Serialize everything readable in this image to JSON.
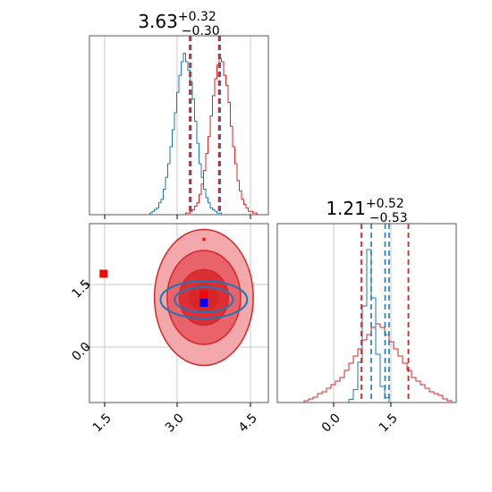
{
  "chart_data": [
    {
      "panel": "marginal-x",
      "type": "histogram",
      "title": {
        "value": "3.63",
        "plus": "+0.32",
        "minus": "−0.30"
      },
      "xlim": [
        1.2,
        5.0
      ],
      "grid": true,
      "series": [
        {
          "color": "#1f77b4",
          "values": [
            0,
            0,
            0,
            0,
            0,
            0,
            0,
            0,
            0,
            0,
            0,
            0,
            0,
            0,
            0,
            0,
            0,
            0,
            0,
            0,
            0,
            0,
            0,
            0,
            0,
            0,
            0,
            0.01,
            0.02,
            0.03,
            0.04,
            0.07,
            0.09,
            0.15,
            0.22,
            0.3,
            0.4,
            0.5,
            0.6,
            0.72,
            0.82,
            0.9,
            0.95,
            0.9,
            0.85,
            0.78,
            0.68,
            0.55,
            0.42,
            0.3,
            0.22,
            0.15,
            0.1,
            0.07,
            0.04,
            0.03,
            0.02,
            0.01,
            0.01,
            0,
            0,
            0,
            0,
            0,
            0,
            0,
            0,
            0,
            0,
            0,
            0,
            0,
            0,
            0,
            0,
            0,
            0,
            0,
            0,
            0
          ]
        },
        {
          "color": "#d62728",
          "values": [
            0,
            0,
            0,
            0,
            0,
            0,
            0,
            0,
            0,
            0,
            0,
            0,
            0,
            0,
            0,
            0,
            0,
            0,
            0,
            0,
            0,
            0,
            0,
            0,
            0,
            0,
            0,
            0,
            0,
            0,
            0,
            0,
            0,
            0,
            0,
            0,
            0,
            0,
            0,
            0,
            0,
            0,
            0,
            0.01,
            0.01,
            0.02,
            0.03,
            0.05,
            0.07,
            0.12,
            0.18,
            0.26,
            0.36,
            0.46,
            0.58,
            0.7,
            0.8,
            0.88,
            0.92,
            0.9,
            0.82,
            0.76,
            0.66,
            0.52,
            0.4,
            0.3,
            0.2,
            0.14,
            0.09,
            0.06,
            0.04,
            0.02,
            0.02,
            0.01,
            0.01,
            0,
            0,
            0,
            0,
            0
          ]
        }
      ],
      "quantiles": {
        "red": [
          3.33,
          3.95
        ],
        "blue": [
          3.33,
          3.95
        ]
      }
    },
    {
      "panel": "joint",
      "type": "contour",
      "xlim": [
        1.2,
        5.0
      ],
      "ylim": [
        -1.2,
        2.8
      ],
      "xticks": [
        "1.5",
        "3.0",
        "4.5"
      ],
      "yticks": [
        "0.0",
        "1.5"
      ],
      "grid": true,
      "markers": [
        {
          "x": 3.63,
          "y": 1.21,
          "color": "#ff0000"
        },
        {
          "x": 3.63,
          "y": 1.03,
          "color": "#0000ff"
        },
        {
          "x": 1.5,
          "y": 1.68,
          "color": "#ff0000"
        },
        {
          "x": 3.63,
          "y": 2.45,
          "color": "#ff0000"
        }
      ],
      "series": [
        {
          "color": "#d62728",
          "center": [
            3.63,
            1.15
          ],
          "radii": [
            [
              1.05,
              1.52
            ],
            [
              0.78,
              1.05
            ],
            [
              0.52,
              0.62
            ],
            [
              0.3,
              0.3
            ]
          ]
        },
        {
          "color": "#1f77b4",
          "center": [
            3.63,
            1.1
          ],
          "radii": [
            [
              0.92,
              0.42
            ],
            [
              0.62,
              0.28
            ]
          ]
        }
      ]
    },
    {
      "panel": "marginal-y",
      "type": "histogram",
      "title": {
        "value": "1.21",
        "plus": "+0.52",
        "minus": "−0.53"
      },
      "xlim": [
        -1.2,
        2.8
      ],
      "xticks": [
        "0.0",
        "1.5"
      ],
      "grid": true,
      "series": [
        {
          "color": "#d62728",
          "values": [
            0,
            0,
            0,
            0,
            0,
            0,
            0.01,
            0.02,
            0.03,
            0.05,
            0.06,
            0.08,
            0.1,
            0.12,
            0.14,
            0.18,
            0.22,
            0.26,
            0.3,
            0.35,
            0.38,
            0.42,
            0.44,
            0.42,
            0.38,
            0.34,
            0.3,
            0.26,
            0.22,
            0.18,
            0.14,
            0.12,
            0.1,
            0.08,
            0.06,
            0.05,
            0.04,
            0.02,
            0.01,
            0
          ]
        },
        {
          "color": "#1f77b4",
          "values": [
            0,
            0,
            0,
            0,
            0,
            0,
            0,
            0,
            0,
            0,
            0,
            0,
            0,
            0,
            0,
            0,
            0.02,
            0.08,
            0.25,
            0.6,
            0.95,
            0.65,
            0.3,
            0.1,
            0.03,
            0,
            0,
            0,
            0,
            0,
            0,
            0,
            0,
            0,
            0,
            0,
            0,
            0,
            0,
            0
          ]
        }
      ],
      "quantiles": {
        "red": [
          0.68,
          1.21,
          1.73
        ],
        "blue": [
          0.9,
          1.21,
          1.3
        ]
      }
    }
  ]
}
